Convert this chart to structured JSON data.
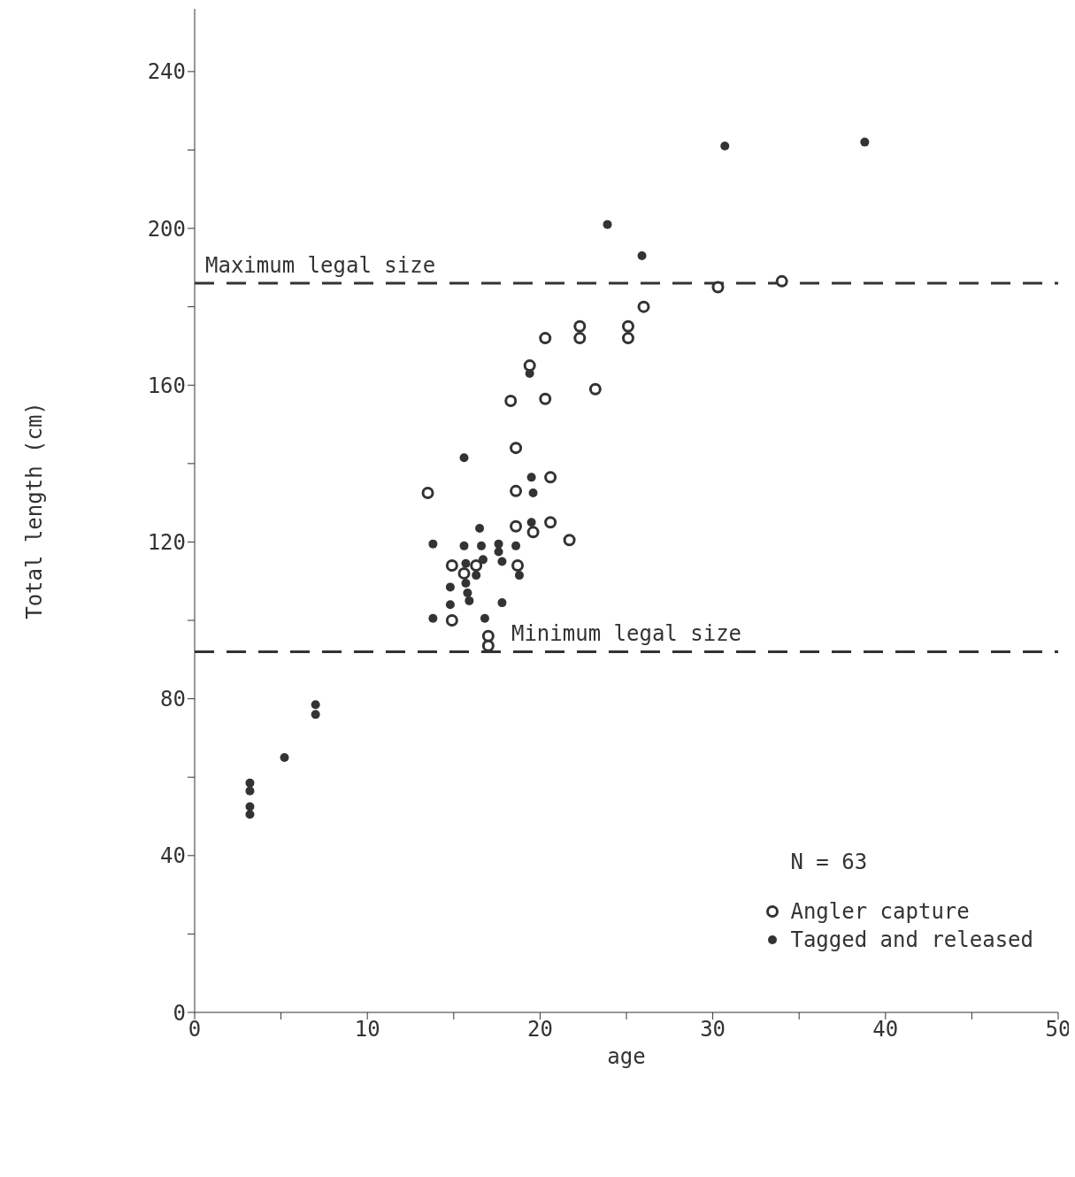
{
  "chart_data": {
    "type": "scatter",
    "xlabel": "age",
    "ylabel": "Total length (cm)",
    "xlim": [
      0,
      50
    ],
    "ylim": [
      0,
      256
    ],
    "xticks": [
      0,
      {
        "value": 5,
        "label": null
      },
      10,
      {
        "value": 15,
        "label": null
      },
      20,
      {
        "value": 25,
        "label": null
      },
      30,
      {
        "value": 35,
        "label": null
      },
      40,
      {
        "value": 45,
        "label": null
      },
      50
    ],
    "yticks": [
      0,
      {
        "value": 20,
        "label": null
      },
      40,
      {
        "value": 60,
        "label": null
      },
      80,
      {
        "value": 100,
        "label": null
      },
      120,
      {
        "value": 140,
        "label": null
      },
      160,
      {
        "value": 180,
        "label": null
      },
      200,
      {
        "value": 220,
        "label": null
      },
      240
    ],
    "grid": false,
    "legend": "bottom right",
    "marker": "circle",
    "annotations": [
      "N = 63"
    ],
    "ref_lines": [
      {
        "axis": "y",
        "value": 186,
        "label": "Maximum legal size",
        "line_style": "dashed",
        "color": "#333333"
      },
      {
        "axis": "y",
        "value": 92,
        "label": "Minimum legal size",
        "line_style": "dashed",
        "color": "#333333"
      }
    ],
    "series": [
      {
        "name": "Angler capture",
        "color": "#333333",
        "x": [
          26,
          22.3,
          22.3,
          25.1,
          25.1,
          20.3,
          19.4,
          23.2,
          18.3,
          20.3,
          18.6,
          20.6,
          13.5,
          18.6,
          18.6,
          20.6,
          19.6,
          21.7,
          14.9,
          16.3,
          15.6,
          18.7,
          14.9,
          17,
          17,
          30.3,
          34
        ],
        "values": [
          180,
          175,
          172,
          175,
          172,
          172,
          165,
          159,
          156,
          156.5,
          144,
          136.5,
          132.5,
          133,
          124,
          125,
          122.5,
          120.5,
          114,
          114,
          112,
          114,
          100,
          96,
          93.5,
          185,
          186.5
        ]
      },
      {
        "name": "Tagged and released",
        "color": "#333333",
        "x": [
          30.7,
          38.8,
          23.9,
          25.9,
          15.6,
          13.8,
          13.8,
          15.6,
          16.6,
          17.6,
          18.6,
          16.5,
          17.6,
          17.8,
          16.7,
          15.7,
          16.3,
          15.7,
          15.8,
          14.8,
          14.8,
          15.9,
          17.8,
          16.8,
          18.8,
          19.5,
          19.5,
          19.6,
          19.4,
          7,
          7,
          5.2,
          3.2,
          3.2,
          3.2,
          3.2
        ],
        "values": [
          221,
          222,
          201,
          193,
          141.5,
          119.5,
          100.5,
          119,
          119,
          119.5,
          119,
          123.5,
          117.5,
          115,
          115.5,
          114.5,
          111.5,
          109.5,
          107,
          108.5,
          104,
          105,
          104.5,
          100.5,
          111.5,
          125,
          136.5,
          132.5,
          163,
          78.5,
          76,
          65,
          58.5,
          56.5,
          52.5,
          50.5
        ]
      }
    ]
  }
}
